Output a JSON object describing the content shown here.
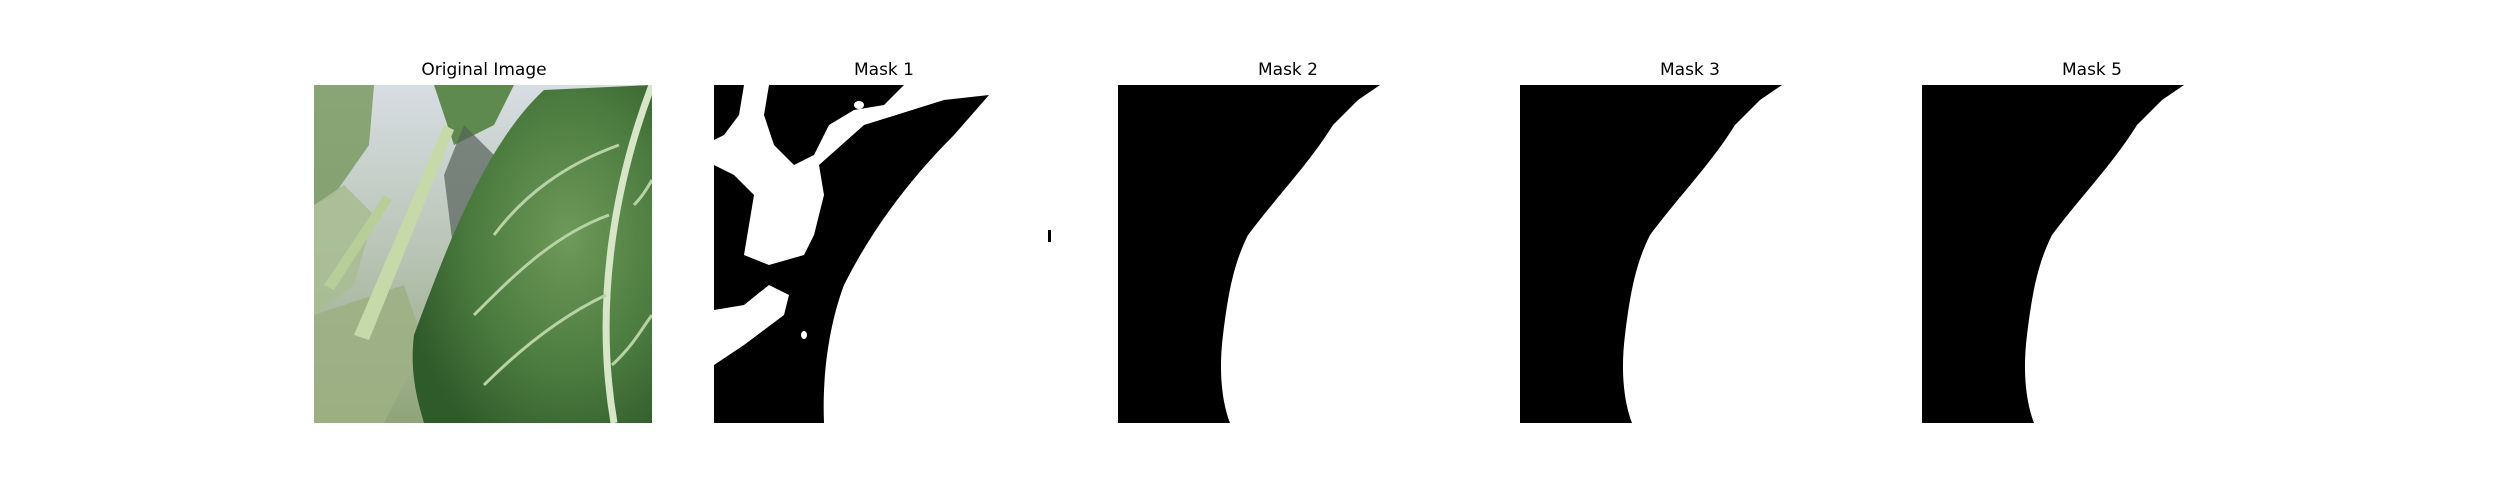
{
  "panels": [
    {
      "title": "Original Image"
    },
    {
      "title": "Mask 1"
    },
    {
      "title": "Mask 2"
    },
    {
      "title": "Mask 3"
    },
    {
      "title": "Mask 5"
    }
  ],
  "colors": {
    "background": "#ffffff",
    "mask_fg": "#ffffff",
    "mask_bg": "#000000",
    "leaf_dark": "#3f6b35",
    "leaf_light": "#7fa46a",
    "sky": "#cfd6dc"
  }
}
